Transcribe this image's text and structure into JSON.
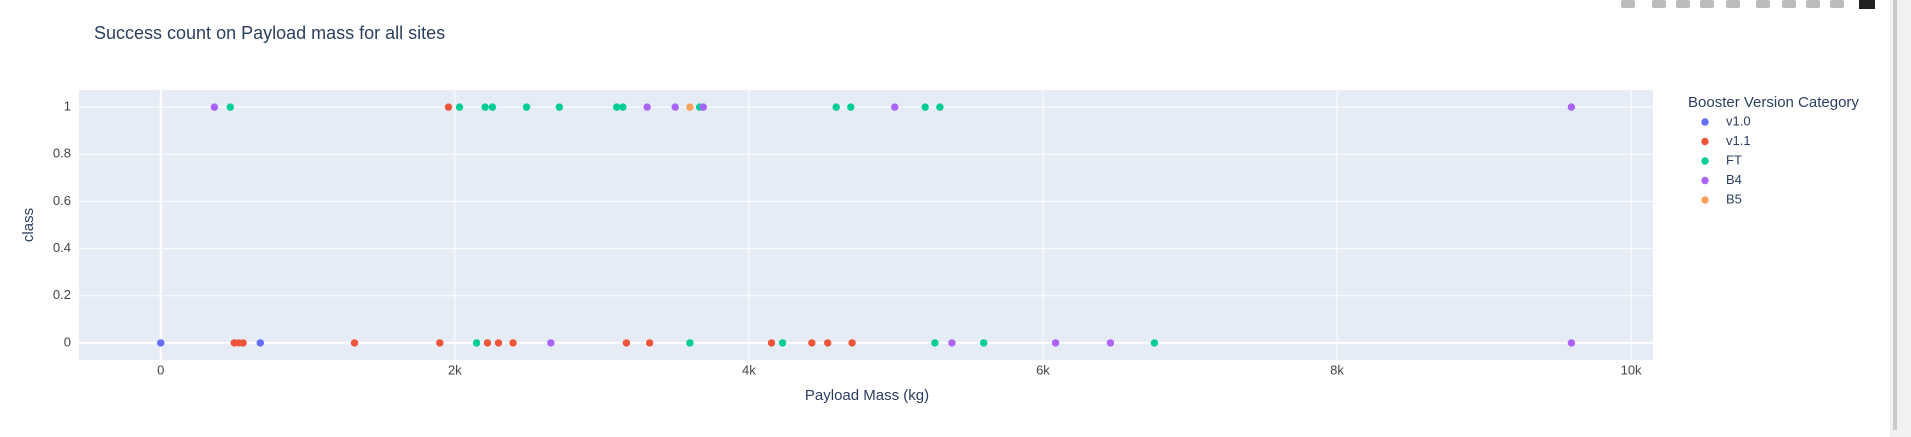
{
  "chart_data": {
    "type": "scatter",
    "title": "Success count on Payload mass for all sites",
    "x_label": "Payload Mass (kg)",
    "y_label": "class",
    "legend_title": "Booster Version Category",
    "legend_position": "right",
    "grid": true,
    "xlim": [
      -556,
      10149
    ],
    "ylim": [
      -0.0725,
      1.0725
    ],
    "xticks": [
      0,
      {
        "value": 2000,
        "label": "2k"
      },
      {
        "value": 4000,
        "label": "4k"
      },
      {
        "value": 6000,
        "label": "6k"
      },
      {
        "value": 8000,
        "label": "8k"
      },
      {
        "value": 10000,
        "label": "10k"
      }
    ],
    "yticks": [
      0,
      0.2,
      0.4,
      0.6,
      0.8,
      1
    ],
    "series": [
      {
        "name": "v1.0",
        "color": "#636efa",
        "x": [
          0,
          677
        ],
        "values": [
          0,
          0
        ]
      },
      {
        "name": "v1.1",
        "color": "#ef553b",
        "x": [
          500,
          530,
          560,
          1318,
          1898,
          2222,
          2297,
          2396,
          3167,
          3325,
          4154,
          4428,
          4536,
          4702,
          1957
        ],
        "values": [
          0,
          0,
          0,
          0,
          0,
          0,
          0,
          0,
          0,
          0,
          0,
          0,
          0,
          0,
          1
        ]
      },
      {
        "name": "FT",
        "color": "#00cc96",
        "x": [
          473,
          2032,
          2206,
          2256,
          2488,
          2711,
          3101,
          3143,
          3665,
          4594,
          4693,
          5199,
          5299,
          2148,
          3599,
          4229,
          5265,
          5597,
          6758
        ],
        "values": [
          1,
          1,
          1,
          1,
          1,
          1,
          1,
          1,
          1,
          1,
          1,
          1,
          1,
          0,
          0,
          0,
          0,
          0,
          0
        ]
      },
      {
        "name": "B4",
        "color": "#ab63fa",
        "x": [
          365,
          3308,
          3499,
          3690,
          4992,
          9594,
          2653,
          5381,
          6086,
          6459,
          9594
        ],
        "values": [
          1,
          1,
          1,
          1,
          1,
          1,
          0,
          0,
          0,
          0,
          0
        ]
      },
      {
        "name": "B5",
        "color": "#ffa15a",
        "x": [
          3599
        ],
        "values": [
          1
        ]
      }
    ]
  }
}
